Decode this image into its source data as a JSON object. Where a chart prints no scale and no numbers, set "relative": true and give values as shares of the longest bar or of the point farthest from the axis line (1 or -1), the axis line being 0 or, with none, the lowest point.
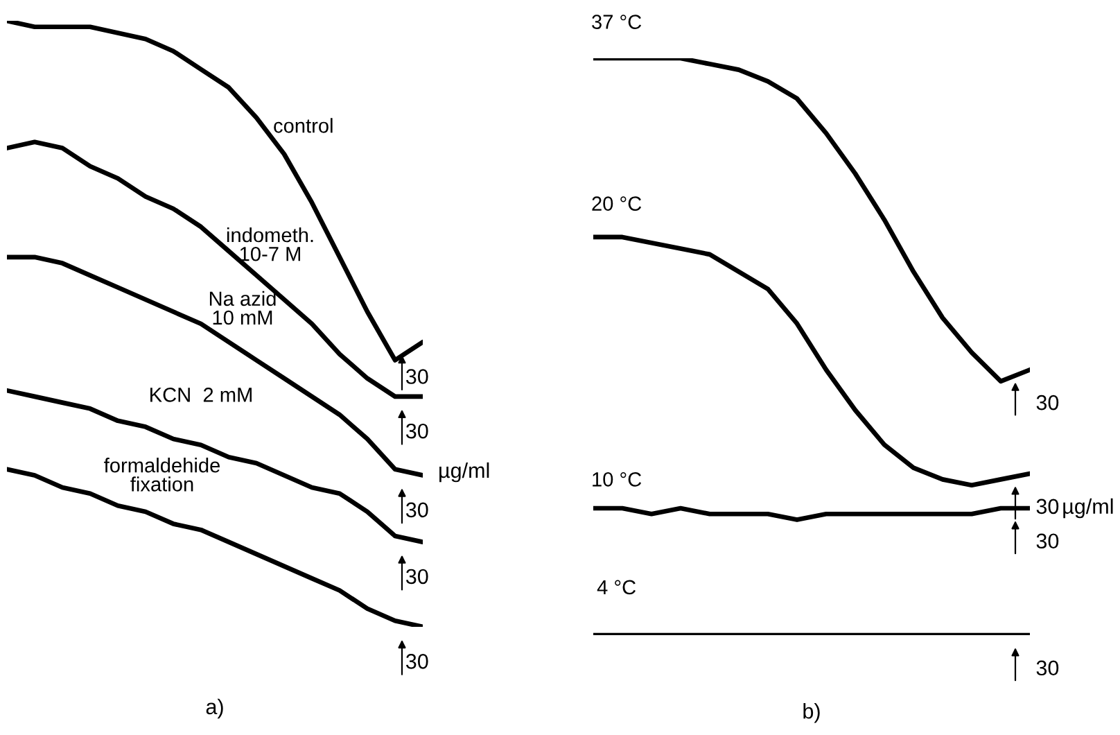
{
  "chart_data": [
    {
      "type": "line",
      "title": "a)",
      "relative": true,
      "categories": [
        null,
        null,
        null,
        null,
        null,
        null,
        null,
        null,
        null,
        null,
        null,
        null,
        null,
        null,
        null,
        null
      ],
      "series": [
        {
          "name": "control",
          "color": "#000000",
          "values": [
            1.0,
            0.99,
            0.99,
            0.99,
            0.98,
            0.97,
            0.95,
            0.92,
            0.89,
            0.84,
            0.78,
            0.7,
            0.61,
            0.52,
            0.44,
            0.47
          ]
        },
        {
          "name": "indometh.\n10-7 M",
          "color": "#000000",
          "values": [
            0.79,
            0.8,
            0.79,
            0.76,
            0.74,
            0.71,
            0.69,
            0.66,
            0.62,
            0.58,
            0.54,
            0.5,
            0.45,
            0.41,
            0.38,
            0.38
          ]
        },
        {
          "name": "Na azid\n10 mM",
          "color": "#000000",
          "values": [
            0.61,
            0.61,
            0.6,
            0.58,
            0.56,
            0.54,
            0.52,
            0.5,
            0.47,
            0.44,
            0.41,
            0.38,
            0.35,
            0.31,
            0.26,
            0.25
          ]
        },
        {
          "name": "KCN  2 mM",
          "color": "#000000",
          "values": [
            0.39,
            0.38,
            0.37,
            0.36,
            0.34,
            0.33,
            0.31,
            0.3,
            0.28,
            0.27,
            0.25,
            0.23,
            0.22,
            0.19,
            0.15,
            0.14
          ]
        },
        {
          "name": "formaldehide\nfixation",
          "color": "#000000",
          "values": [
            0.26,
            0.25,
            0.23,
            0.22,
            0.2,
            0.19,
            0.17,
            0.16,
            0.14,
            0.12,
            0.1,
            0.08,
            0.06,
            0.03,
            0.01,
            0.0
          ]
        }
      ],
      "annotations": [
        "30",
        "30",
        "30",
        "30",
        "30",
        "µg/ml"
      ]
    },
    {
      "type": "line",
      "title": "b)",
      "relative": true,
      "categories": [
        null,
        null,
        null,
        null,
        null,
        null,
        null,
        null,
        null,
        null,
        null,
        null,
        null,
        null,
        null,
        null
      ],
      "series": [
        {
          "name": "37 °C",
          "color": "#000000",
          "values": [
            1.0,
            1.0,
            1.0,
            1.0,
            0.99,
            0.98,
            0.96,
            0.93,
            0.87,
            0.8,
            0.72,
            0.63,
            0.55,
            0.49,
            0.44,
            0.46
          ]
        },
        {
          "name": "20 °C",
          "color": "#000000",
          "values": [
            0.69,
            0.69,
            0.68,
            0.67,
            0.66,
            0.63,
            0.6,
            0.54,
            0.46,
            0.39,
            0.33,
            0.29,
            0.27,
            0.26,
            0.27,
            0.28
          ]
        },
        {
          "name": "10 °C",
          "color": "#000000",
          "values": [
            0.22,
            0.22,
            0.21,
            0.22,
            0.21,
            0.21,
            0.21,
            0.2,
            0.21,
            0.21,
            0.21,
            0.21,
            0.21,
            0.21,
            0.22,
            0.22
          ]
        },
        {
          "name": "4 °C",
          "color": "#000000",
          "values": [
            0.0,
            0.0,
            0.0,
            0.0,
            0.0,
            0.0,
            0.0,
            0.0,
            0.0,
            0.0,
            0.0,
            0.0,
            0.0,
            0.0,
            0.0,
            0.0
          ]
        }
      ],
      "annotations": [
        "30",
        "30",
        "30",
        "30",
        "µg/ml"
      ]
    }
  ]
}
